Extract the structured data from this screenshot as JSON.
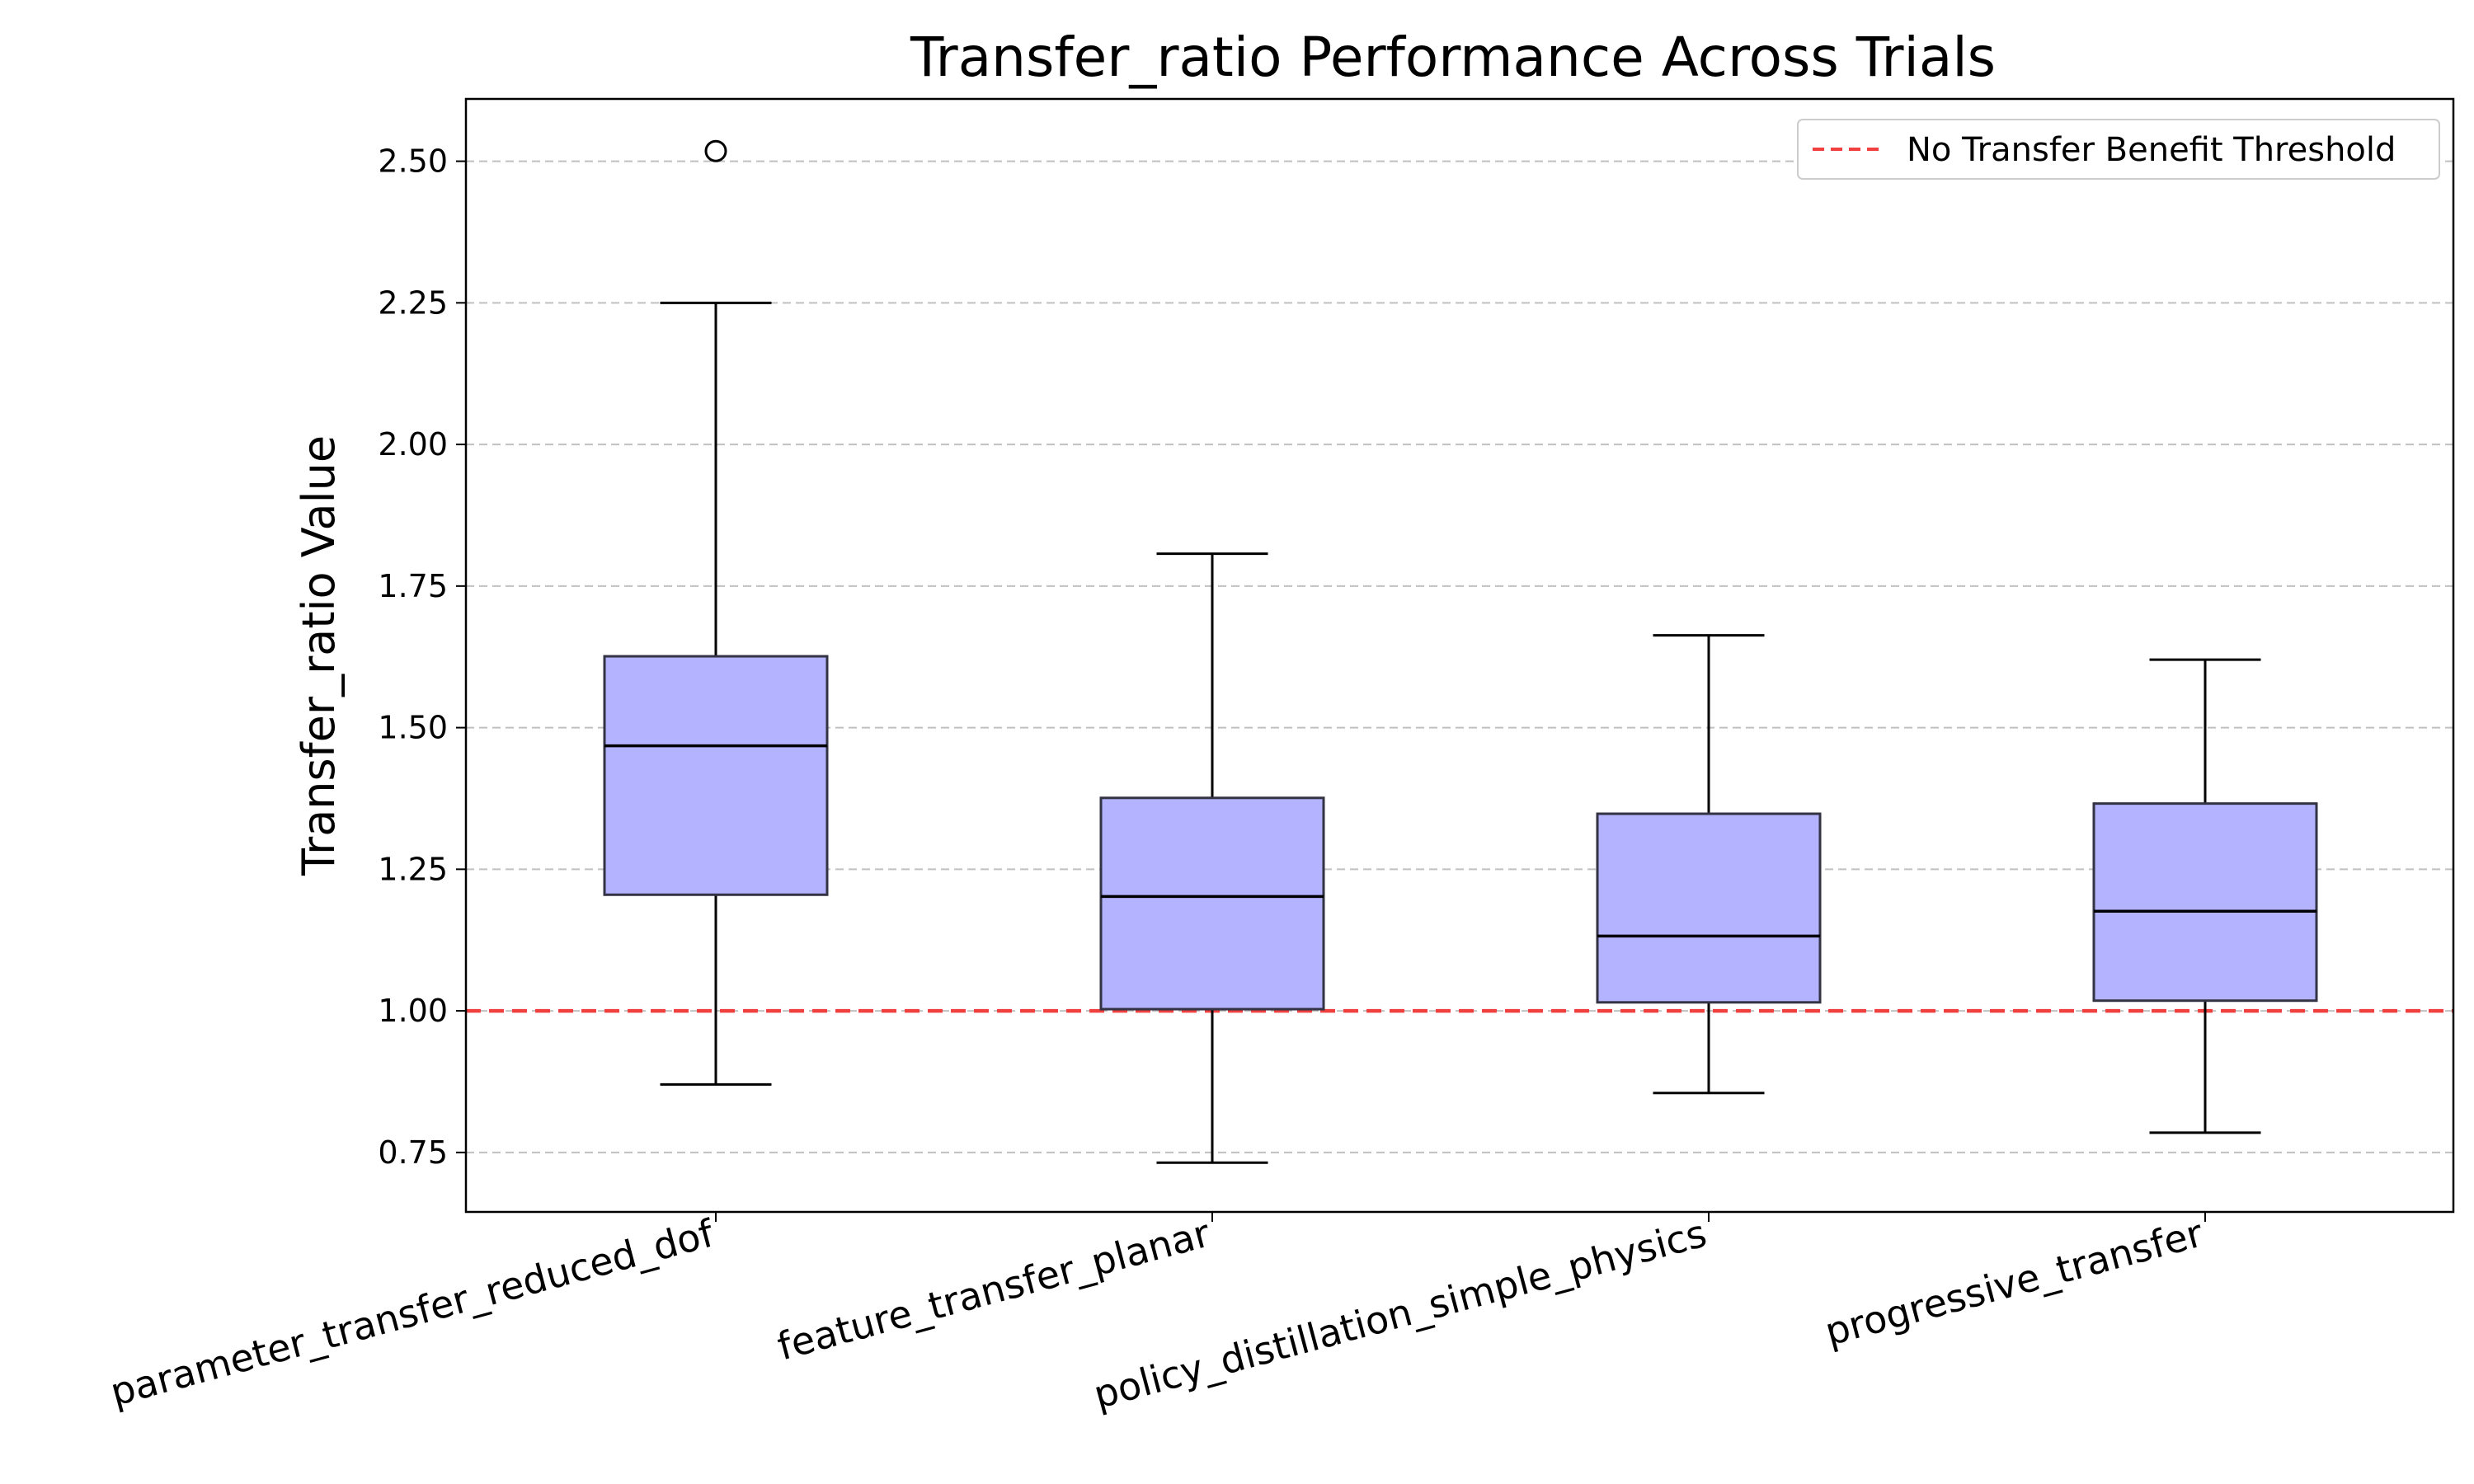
{
  "chart_data": {
    "type": "boxplot",
    "title": "Transfer_ratio Performance Across Trials",
    "xlabel": "",
    "ylabel": "Transfer_ratio Value",
    "ylim": [
      0.645,
      2.61
    ],
    "yticks": [
      0.75,
      1.0,
      1.25,
      1.5,
      1.75,
      2.0,
      2.25,
      2.5
    ],
    "ytick_labels": [
      "0.75",
      "1.00",
      "1.25",
      "1.50",
      "1.75",
      "2.00",
      "2.25",
      "2.50"
    ],
    "grid": "horizontal dashed",
    "categories": [
      "parameter_transfer_reduced_dof",
      "feature_transfer_planar",
      "policy_distillation_simple_physics",
      "progressive_transfer"
    ],
    "boxes": [
      {
        "whisker_low": 0.87,
        "q1": 1.205,
        "median": 1.468,
        "q3": 1.626,
        "whisker_high": 2.25,
        "outliers": [
          2.518
        ]
      },
      {
        "whisker_low": 0.732,
        "q1": 1.003,
        "median": 1.202,
        "q3": 1.376,
        "whisker_high": 1.807,
        "outliers": []
      },
      {
        "whisker_low": 0.855,
        "q1": 1.015,
        "median": 1.132,
        "q3": 1.348,
        "whisker_high": 1.663,
        "outliers": []
      },
      {
        "whisker_low": 0.785,
        "q1": 1.018,
        "median": 1.176,
        "q3": 1.366,
        "whisker_high": 1.62,
        "outliers": []
      }
    ],
    "reference_line": {
      "y": 1.0,
      "label": "No Transfer Benefit Threshold",
      "color": "#f04040"
    },
    "legend_position": "top-right",
    "box_fill": "#b3b3ff",
    "box_edge": "#333344"
  }
}
